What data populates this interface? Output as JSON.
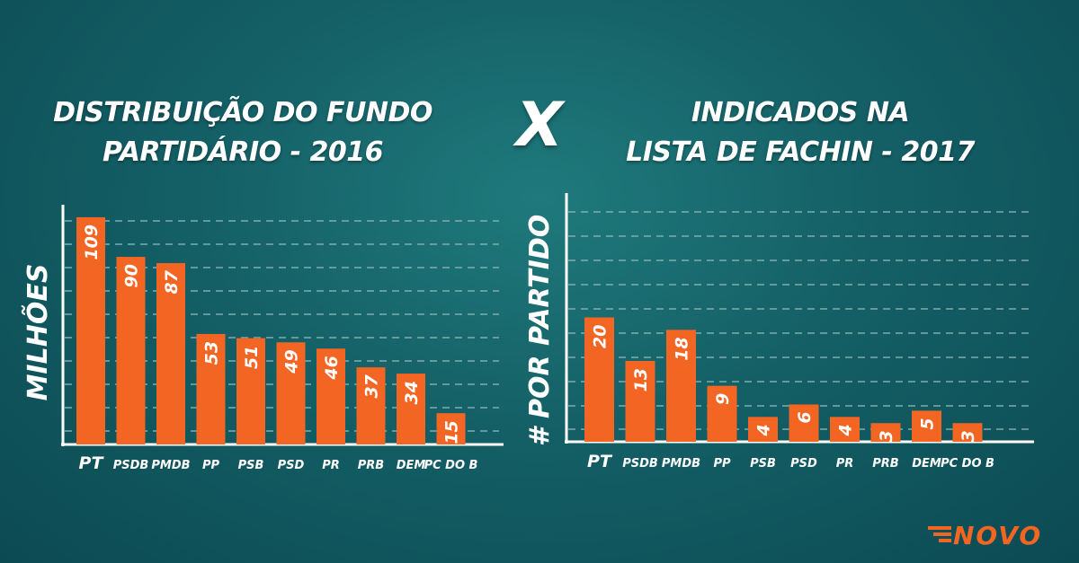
{
  "title_left": [
    "DISTRIBUIÇÃO DO FUNDO",
    "PARTIDÁRIO - 2016"
  ],
  "versus": "X",
  "title_right": [
    "INDICADOS NA",
    "LISTA DE FACHIN - 2017"
  ],
  "logo_text": "NOVO",
  "colors": {
    "bar": "#f26522",
    "axis": "#ffffff",
    "grid": "#8fb8b8",
    "background": "#145f66"
  },
  "chart_data": [
    {
      "type": "bar",
      "ylabel": "MILHÕES",
      "categories": [
        "PT",
        "PSDB",
        "PMDB",
        "PP",
        "PSB",
        "PSD",
        "PR",
        "PRB",
        "DEM",
        "PC DO B"
      ],
      "values": [
        109,
        90,
        87,
        53,
        51,
        49,
        46,
        37,
        34,
        15
      ],
      "ylim": [
        0,
        115
      ],
      "grid": true
    },
    {
      "type": "bar",
      "ylabel": "# POR PARTIDO",
      "categories": [
        "PT",
        "PSDB",
        "PMDB",
        "PP",
        "PSB",
        "PSD",
        "PR",
        "PRB",
        "DEM",
        "PC DO B"
      ],
      "values": [
        20,
        13,
        18,
        9,
        4,
        6,
        4,
        3,
        5,
        3
      ],
      "ylim": [
        0,
        40
      ],
      "grid": true
    }
  ]
}
